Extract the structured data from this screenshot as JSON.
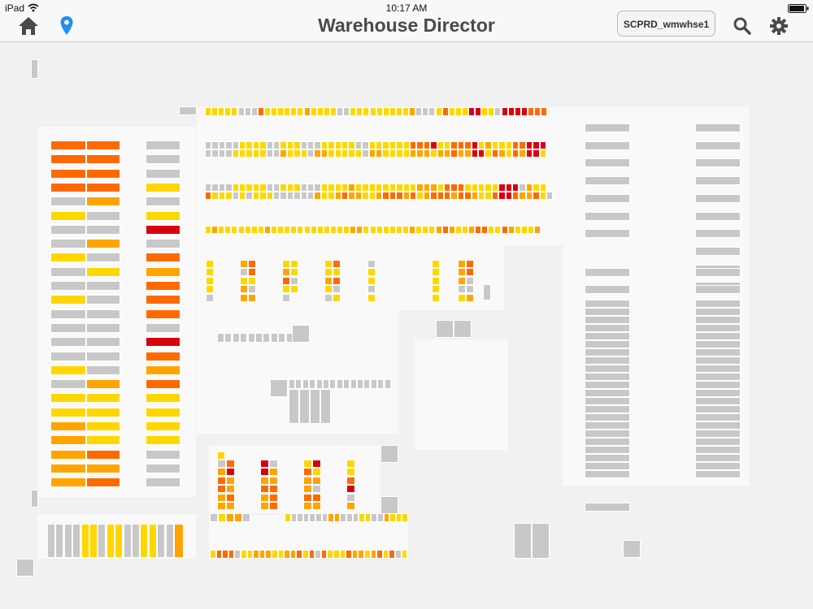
{
  "status_bar": {
    "device": "iPad",
    "time": "10:17 AM"
  },
  "nav": {
    "title": "Warehouse Director",
    "warehouse": "SCPRD_wmwhse1",
    "icons": [
      "home-icon",
      "location-pin-icon",
      "search-icon",
      "gear-icon"
    ]
  },
  "colors": {
    "empty": "#c8c8c8",
    "low": "#ffd600",
    "medium": "#ffa400",
    "high": "#ff6a00",
    "critical": "#d9000f",
    "accent": "#1e8ff0",
    "panel": "#f9f9f9",
    "background": "#f1f1f1"
  }
}
